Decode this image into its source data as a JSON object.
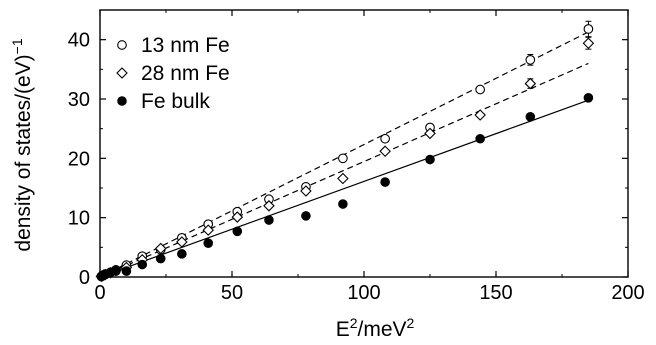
{
  "chart_data": {
    "type": "scatter",
    "xlabel_base": "E",
    "xlabel_sup": "2",
    "xlabel_mid": "/meV",
    "xlabel_sup2": "2",
    "ylabel_main": "density of states/(eV)",
    "ylabel_sup": "−1",
    "xlim": [
      0,
      200
    ],
    "ylim": [
      0,
      45
    ],
    "xticks": [
      0,
      50,
      100,
      150,
      200
    ],
    "yticks": [
      0,
      10,
      20,
      30,
      40
    ],
    "xtick_labels": [
      "0",
      "50",
      "100",
      "150",
      "200"
    ],
    "ytick_labels": [
      "0",
      "10",
      "20",
      "30",
      "40"
    ],
    "legend_position": "top-left",
    "grid": false,
    "series": [
      {
        "name": "13 nm Fe",
        "marker": "open-circle",
        "fit": "dashed",
        "fit_line": [
          [
            0,
            0
          ],
          [
            185,
            41.3
          ]
        ],
        "points": [
          [
            0.5,
            0.1
          ],
          [
            1,
            0.3
          ],
          [
            2,
            0.5
          ],
          [
            4,
            0.8
          ],
          [
            6,
            1.2
          ],
          [
            10,
            2.0
          ],
          [
            16,
            3.5
          ],
          [
            23,
            4.6
          ],
          [
            31,
            6.6
          ],
          [
            41,
            8.9
          ],
          [
            52,
            11.0
          ],
          [
            64,
            13.1
          ],
          [
            78,
            15.2
          ],
          [
            92,
            20.0
          ],
          [
            108,
            23.3
          ],
          [
            125,
            25.2
          ],
          [
            144,
            31.6
          ],
          [
            163,
            36.6
          ],
          [
            185,
            41.8
          ]
        ],
        "error_points": [
          [
            163,
            36.6,
            0.9
          ],
          [
            185,
            41.8,
            1.3
          ]
        ]
      },
      {
        "name": "28 nm Fe",
        "marker": "open-diamond",
        "fit": "dashed",
        "fit_line": [
          [
            0,
            0
          ],
          [
            185,
            36.0
          ]
        ],
        "points": [
          [
            0.5,
            0.1
          ],
          [
            1,
            0.2
          ],
          [
            2,
            0.4
          ],
          [
            4,
            0.7
          ],
          [
            6,
            1.1
          ],
          [
            10,
            1.6
          ],
          [
            16,
            2.9
          ],
          [
            23,
            4.8
          ],
          [
            31,
            5.9
          ],
          [
            41,
            7.9
          ],
          [
            52,
            10.1
          ],
          [
            64,
            12.0
          ],
          [
            78,
            14.5
          ],
          [
            92,
            16.6
          ],
          [
            108,
            21.2
          ],
          [
            125,
            24.2
          ],
          [
            144,
            27.3
          ],
          [
            163,
            32.6
          ],
          [
            185,
            39.4
          ]
        ],
        "error_points": [
          [
            163,
            32.6,
            0.8
          ],
          [
            185,
            39.4,
            1.0
          ]
        ]
      },
      {
        "name": "Fe bulk",
        "marker": "filled-circle",
        "fit": "solid",
        "fit_line": [
          [
            0,
            0
          ],
          [
            185,
            29.8
          ]
        ],
        "points": [
          [
            0.5,
            0.1
          ],
          [
            1,
            0.2
          ],
          [
            2,
            0.4
          ],
          [
            4,
            0.8
          ],
          [
            6,
            1.0
          ],
          [
            10,
            1.0
          ],
          [
            16,
            2.1
          ],
          [
            23,
            3.1
          ],
          [
            31,
            3.9
          ],
          [
            41,
            5.7
          ],
          [
            52,
            7.7
          ],
          [
            64,
            9.6
          ],
          [
            78,
            10.3
          ],
          [
            92,
            12.3
          ],
          [
            108,
            16.0
          ],
          [
            125,
            19.8
          ],
          [
            144,
            23.3
          ],
          [
            163,
            27.0
          ],
          [
            185,
            30.2
          ]
        ],
        "error_points": []
      }
    ]
  }
}
